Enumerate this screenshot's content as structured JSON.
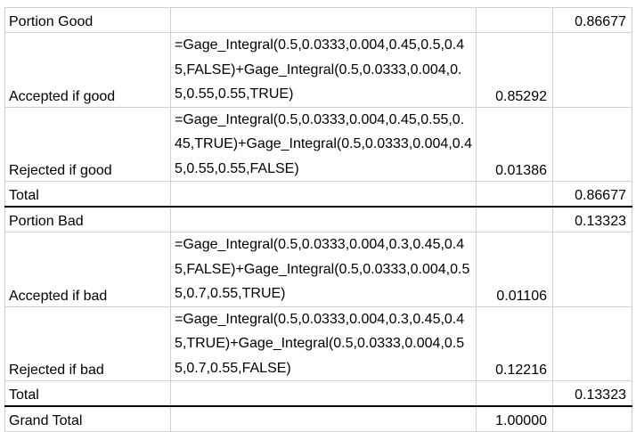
{
  "rows": [
    {
      "label": "Portion Good",
      "formula": "",
      "value": "",
      "total": "0.86677"
    },
    {
      "label": "Accepted if good",
      "formula": "=Gage_Integral(0.5,0.0333,0.004,0.45,0.5,0.45,FALSE)+Gage_Integral(0.5,0.0333,0.004,0.5,0.55,0.55,TRUE)",
      "value": "0.85292",
      "total": ""
    },
    {
      "label": "Rejected if good",
      "formula": "=Gage_Integral(0.5,0.0333,0.004,0.45,0.55,0.45,TRUE)+Gage_Integral(0.5,0.0333,0.004,0.45,0.55,0.55,FALSE)",
      "value": "0.01386",
      "total": ""
    },
    {
      "label": "Total",
      "formula": "",
      "value": "",
      "total": "0.86677"
    },
    {
      "label": "Portion Bad",
      "formula": "",
      "value": "",
      "total": "0.13323"
    },
    {
      "label": "Accepted if bad",
      "formula": "=Gage_Integral(0.5,0.0333,0.004,0.3,0.45,0.45,FALSE)+Gage_Integral(0.5,0.0333,0.004,0.55,0.7,0.55,TRUE)",
      "value": "0.01106",
      "total": ""
    },
    {
      "label": "Rejected if bad",
      "formula": "=Gage_Integral(0.5,0.0333,0.004,0.3,0.45,0.45,TRUE)+Gage_Integral(0.5,0.0333,0.004,0.55,0.7,0.55,FALSE)",
      "value": "0.12216",
      "total": ""
    },
    {
      "label": "Total",
      "formula": "",
      "value": "",
      "total": "0.13323"
    },
    {
      "label": "Grand Total",
      "formula": "",
      "value": "1.00000",
      "total": ""
    }
  ]
}
